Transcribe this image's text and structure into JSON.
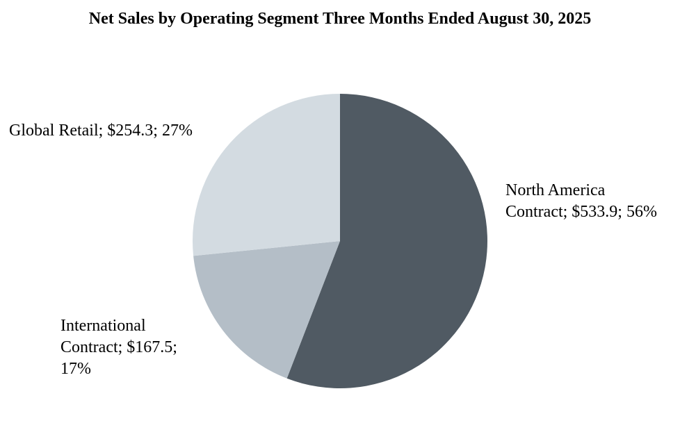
{
  "chart_data": {
    "type": "pie",
    "title": "Net Sales by Operating Segment Three Months Ended August 30, 2025",
    "slices": [
      {
        "label": "North America\nContract; $533.9; 56%",
        "name": "North America Contract",
        "value": 533.9,
        "percent": 56,
        "color": "#505a63"
      },
      {
        "label": "International\nContract; $167.5;\n17%",
        "name": "International Contract",
        "value": 167.5,
        "percent": 17,
        "color": "#b4bec7"
      },
      {
        "label": "Global Retail; $254.3; 27%",
        "name": "Global Retail",
        "value": 254.3,
        "percent": 27,
        "color": "#d3dbe1"
      }
    ],
    "legend": "none"
  }
}
